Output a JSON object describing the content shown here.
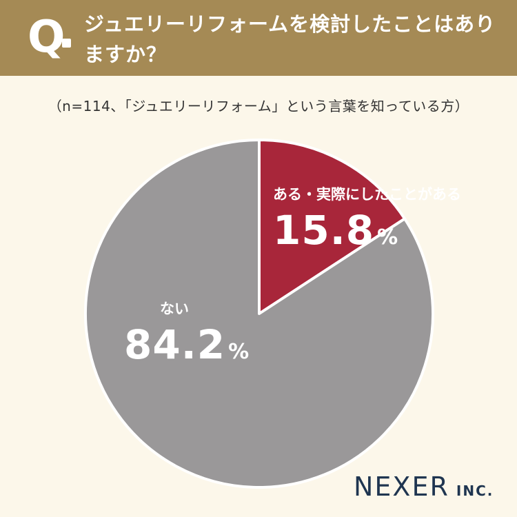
{
  "header": {
    "q_mark": "Q",
    "question": "ジュエリーリフォームを検討したことはありますか？"
  },
  "sample_note": "（n=114、「ジュエリーリフォーム」という言葉を知っている方）",
  "chart_data": {
    "type": "pie",
    "slices": [
      {
        "label": "ある・実際にしたことがある",
        "value": 15.8,
        "value_text": "15.8",
        "unit": "%",
        "color": "#a8263a"
      },
      {
        "label": "ない",
        "value": 84.2,
        "value_text": "84.2",
        "unit": "%",
        "color": "#9a9899"
      }
    ],
    "start": "12 o'clock, clockwise"
  },
  "logo": {
    "main": "NEXER",
    "suffix": "INC."
  }
}
